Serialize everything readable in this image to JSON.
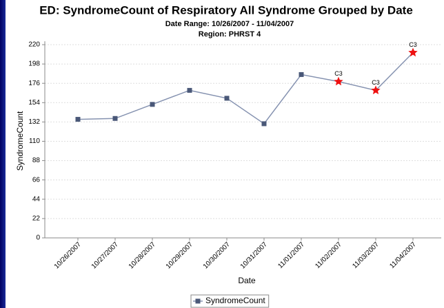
{
  "chart_data": {
    "type": "line",
    "title": "ED: SyndromeCount of Respiratory All Syndrome Grouped by Date",
    "subtitle": [
      "Date Range: 10/26/2007 - 11/04/2007",
      "Region: PHRST 4"
    ],
    "x_label": "Date",
    "y_label": "SyndromeCount",
    "categories": [
      "10/26/2007",
      "10/27/2007",
      "10/28/2007",
      "10/29/2007",
      "10/30/2007",
      "10/31/2007",
      "11/01/2007",
      "11/02/2007",
      "11/03/2007",
      "11/04/2007"
    ],
    "series": [
      {
        "name": "SyndromeCount",
        "color": "#8592b0",
        "marker_color": "#4a5878",
        "values": [
          135,
          136,
          152,
          168,
          159,
          130,
          186,
          178,
          168,
          211
        ],
        "point_labels": [
          null,
          null,
          null,
          null,
          null,
          null,
          null,
          "C3",
          "C3",
          "C3"
        ],
        "flag_color": "#ee1111"
      }
    ],
    "ylim": [
      0,
      220
    ],
    "yticks": [
      0,
      22,
      44,
      66,
      88,
      110,
      132,
      154,
      176,
      198,
      220
    ],
    "grid": true,
    "legend": "bottom"
  }
}
